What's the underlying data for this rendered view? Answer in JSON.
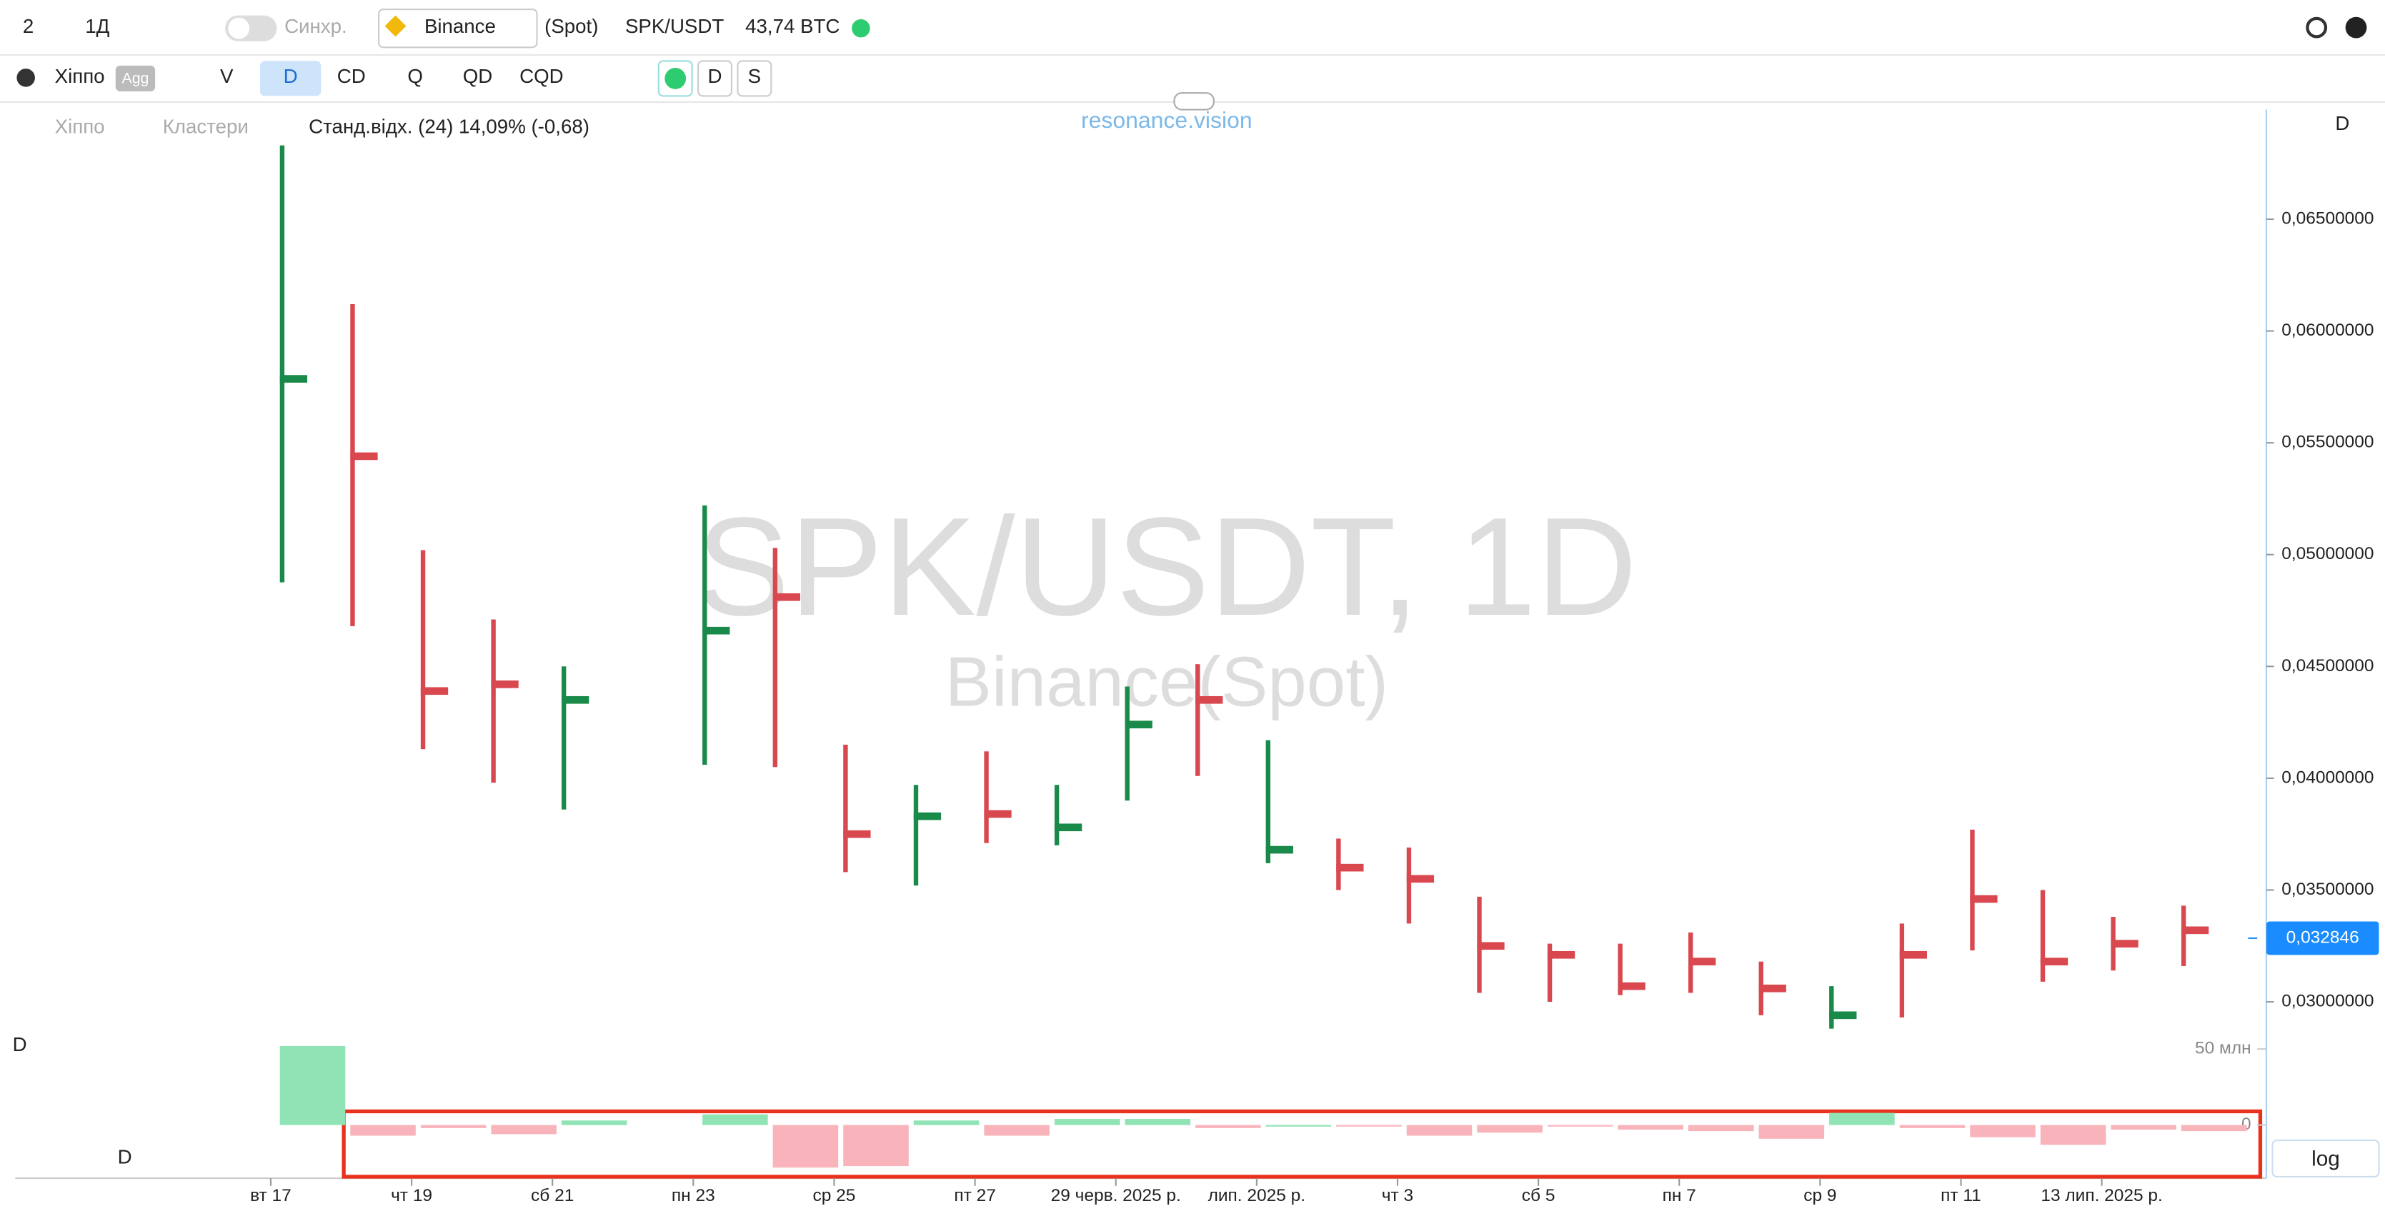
{
  "toolbar": {
    "layout_count": "2",
    "interval": "1Д",
    "sync": "Синхр.",
    "exchange": "Binance",
    "market": "(Spot)",
    "symbol": "SPK/USDT",
    "volume": "43,74 BTC"
  },
  "toolbar2": {
    "profile": "Хіппо",
    "agg": "Agg",
    "buttons": [
      "V",
      "D",
      "CD",
      "Q",
      "QD",
      "CQD"
    ],
    "active": "D",
    "extra": [
      "D",
      "S"
    ]
  },
  "legend": {
    "profile": "Хіппо",
    "clusters": "Кластери",
    "indicator": "Станд.відх. (24) 14,09% (-0,68)"
  },
  "brand": "resonance.vision",
  "pane_labels": {
    "main": "D",
    "sub_top": "D",
    "sub_bottom": "D"
  },
  "log_button": "log",
  "chart_data": {
    "type": "cluster",
    "title": "SPK/USDT, 1D",
    "subtitle": "Binance(Spot)",
    "categories": [
      "вт 17",
      null,
      "чт 19",
      null,
      "сб 21",
      null,
      "пн 23",
      null,
      "ср 25",
      null,
      "пт 27",
      null,
      "29 черв. 2025 р.",
      null,
      "лип. 2025 р.",
      null,
      "чт 3",
      null,
      "сб 5",
      null,
      "пн 7",
      null,
      "ср 9",
      null,
      "пт 11",
      null,
      "13 лип. 2025 р.",
      null
    ],
    "high": [
      0.0683,
      0.0612,
      0.0502,
      0.0471,
      0.045,
      null,
      0.0522,
      0.0503,
      0.0415,
      0.0397,
      0.0412,
      0.0397,
      0.0441,
      0.0451,
      0.0417,
      0.0373,
      0.0369,
      0.0347,
      0.0326,
      0.0326,
      0.0331,
      0.0318,
      0.0307,
      0.0335,
      0.0377,
      0.035,
      0.0338,
      0.0343
    ],
    "low": [
      0.04876,
      0.0468,
      0.0413,
      0.0398,
      0.0386,
      null,
      0.0406,
      0.0405,
      0.0358,
      0.0352,
      0.0371,
      0.037,
      0.039,
      0.0401,
      0.0362,
      0.035,
      0.0335,
      0.0304,
      0.03,
      0.0303,
      0.0304,
      0.0294,
      0.0288,
      0.0293,
      0.0323,
      0.0309,
      0.0314,
      0.0316
    ],
    "poc": [
      0.05786,
      0.0544,
      0.0439,
      0.0442,
      0.0435,
      null,
      0.0466,
      0.0481,
      0.0375,
      0.0383,
      0.0384,
      0.0378,
      0.0424,
      0.0435,
      0.0368,
      0.036,
      0.0355,
      0.0325,
      0.0321,
      0.0307,
      0.0318,
      0.0306,
      0.0294,
      0.0321,
      0.0346,
      0.0318,
      0.0326,
      0.0332
    ],
    "delta": [
      52,
      -7,
      -2,
      -6,
      3,
      null,
      7,
      -28,
      -27,
      3,
      -7,
      4,
      4,
      -2,
      0,
      -1,
      -7,
      -5,
      -1,
      -3,
      -4,
      -9,
      8,
      -2,
      -8,
      -13,
      -3,
      -4
    ],
    "up_color": "#1a8a4a",
    "down_color": "#d9474f",
    "delta_up_color": "#8fe3b4",
    "delta_down_color": "#f9b3bb",
    "ylim": [
      0.0285,
      0.0699
    ],
    "yticks": [
      {
        "value": 0.03,
        "label": "0,03000000"
      },
      {
        "value": 0.035,
        "label": "0,03500000"
      },
      {
        "value": 0.04,
        "label": "0,04000000"
      },
      {
        "value": 0.045,
        "label": "0,04500000"
      },
      {
        "value": 0.05,
        "label": "0,05000000"
      },
      {
        "value": 0.055,
        "label": "0,05500000"
      },
      {
        "value": 0.06,
        "label": "0,06000000"
      },
      {
        "value": 0.065,
        "label": "0,06500000"
      }
    ],
    "last_price": {
      "value": 0.032846,
      "label": "0,032846"
    },
    "y2lim": [
      -30,
      55
    ],
    "y2ticks": [
      0,
      {
        "value": 50,
        "label": "50 млн"
      }
    ]
  }
}
